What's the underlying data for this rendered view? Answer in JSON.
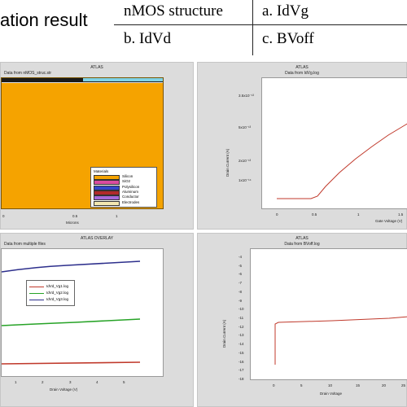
{
  "slide": {
    "heading": "ation result",
    "table": {
      "r1c1": "nMOS structure",
      "r1c2": "a. IdVg",
      "r2c1": "b. IdVd",
      "r2c2": "c. BVoff"
    }
  },
  "panel_structure": {
    "title": "ATLAS",
    "subtitle": "Data from nMOS_struc.str",
    "xlabel": "Microns",
    "ticks": [
      "0",
      "0.5",
      "1"
    ],
    "legend": {
      "title": "Materials",
      "items": [
        {
          "label": "Silicon",
          "color": "#f5a300"
        },
        {
          "label": "SiO2",
          "color": "#d94c9f"
        },
        {
          "label": "Polysilicon",
          "color": "#3346c9"
        },
        {
          "label": "Aluminum",
          "color": "#b12a2a"
        },
        {
          "label": "Conductor",
          "color": "#a66ad9"
        },
        {
          "label": "Electrodes",
          "color": "#f3e8b0"
        }
      ]
    }
  },
  "panel_idvg": {
    "title": "ATLAS",
    "subtitle": "Data from IdVg.log",
    "ylabel": "Drain Current (A)",
    "xlabel": "Gate Voltage (V)",
    "yticks": [
      "3.5x10⁻¹³",
      "5x10⁻¹³",
      "2x10⁻¹³",
      "1x10⁻¹⁴"
    ],
    "xticks": [
      "0",
      "0.5",
      "1",
      "1.5"
    ]
  },
  "panel_idvd": {
    "title": "ATLAS OVERLAY",
    "subtitle": "Data from multiple files",
    "xlabel": "Drain Voltage (V)",
    "xticks": [
      "1",
      "2",
      "3",
      "4",
      "5"
    ],
    "legend": [
      {
        "label": "IdVd_Vg1.log",
        "color": "#c0392b"
      },
      {
        "label": "IdVd_Vg2.log",
        "color": "#27a327"
      },
      {
        "label": "IdVd_Vg3.log",
        "color": "#2d2f8c"
      }
    ]
  },
  "panel_bvoff": {
    "title": "ATLAS",
    "subtitle": "Data from BVoff.log",
    "ylabel": "Drain Current (A)",
    "xlabel": "Drain Voltage",
    "yticks": [
      "-4",
      "-5",
      "-6",
      "-7",
      "-8",
      "-9",
      "-10",
      "-11",
      "-12",
      "-13",
      "-14",
      "-15",
      "-16",
      "-17",
      "-18"
    ],
    "xticks": [
      "0",
      "5",
      "10",
      "15",
      "20",
      "25"
    ]
  },
  "colors": {
    "silicon": "#f5a300",
    "curve_red": "#c0392b",
    "curve_green": "#27a327",
    "curve_blue": "#2d2f8c",
    "panel_bg": "#dcdcdc"
  }
}
